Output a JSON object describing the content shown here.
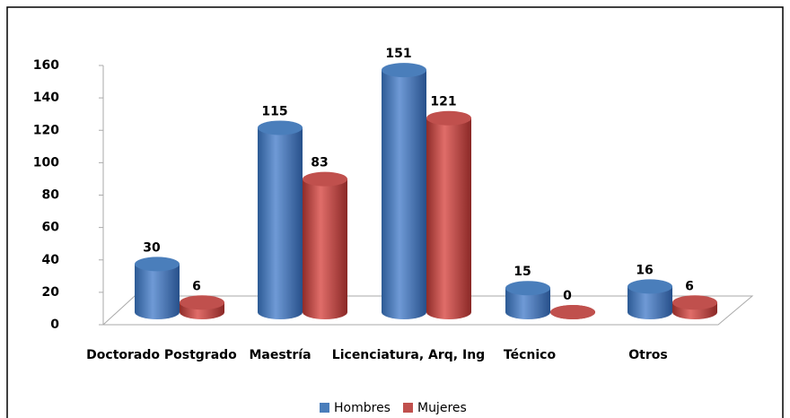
{
  "chart_data": {
    "type": "bar",
    "categories": [
      "Doctorado Postgrado",
      "Maestría",
      "Licenciatura, Arq, Ing",
      "Técnico",
      "Otros"
    ],
    "series": [
      {
        "name": "Hombres",
        "color": "#4a7ebb",
        "values": [
          30,
          115,
          151,
          15,
          16
        ]
      },
      {
        "name": "Mujeres",
        "color": "#c0504d",
        "values": [
          6,
          83,
          121,
          0,
          6
        ]
      }
    ],
    "ylim": [
      0,
      160
    ],
    "yticks": [
      0,
      20,
      40,
      60,
      80,
      100,
      120,
      140,
      160
    ]
  }
}
